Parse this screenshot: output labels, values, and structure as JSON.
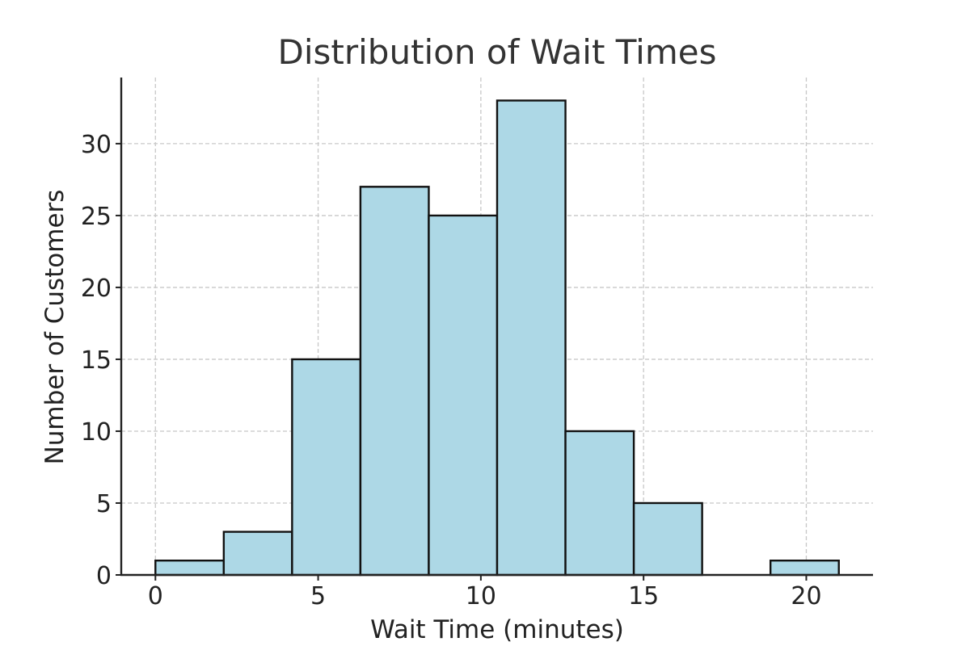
{
  "chart_data": {
    "type": "bar",
    "title": "Distribution of Wait Times",
    "xlabel": "Wait Time (minutes)",
    "ylabel": "Number of Customers",
    "xlim": [
      -1.05,
      22.05
    ],
    "ylim": [
      0,
      34.6
    ],
    "xticks": [
      0,
      5,
      10,
      15,
      20
    ],
    "yticks": [
      0,
      5,
      10,
      15,
      20,
      25,
      30
    ],
    "grid": true,
    "bar_color": "#add8e6",
    "edge_color": "#111111",
    "bins": [
      {
        "x_start": 0.0,
        "x_end": 2.1,
        "value": 1
      },
      {
        "x_start": 2.1,
        "x_end": 4.2,
        "value": 3
      },
      {
        "x_start": 4.2,
        "x_end": 6.3,
        "value": 15
      },
      {
        "x_start": 6.3,
        "x_end": 8.4,
        "value": 27
      },
      {
        "x_start": 8.4,
        "x_end": 10.5,
        "value": 25
      },
      {
        "x_start": 10.5,
        "x_end": 12.6,
        "value": 33
      },
      {
        "x_start": 12.6,
        "x_end": 14.7,
        "value": 10
      },
      {
        "x_start": 14.7,
        "x_end": 16.8,
        "value": 5
      },
      {
        "x_start": 16.8,
        "x_end": 18.9,
        "value": 0
      },
      {
        "x_start": 18.9,
        "x_end": 21.0,
        "value": 1
      }
    ]
  }
}
